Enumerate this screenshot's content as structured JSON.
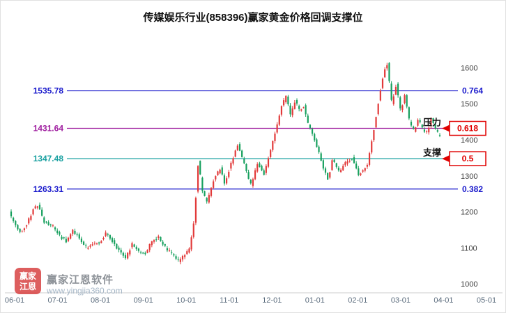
{
  "title": "传媒娱乐行业(858396)赢家黄金价格回调支撑位",
  "chart_data": {
    "type": "candlestick",
    "x_labels": [
      "06-01",
      "07-01",
      "08-01",
      "09-01",
      "10-01",
      "11-01",
      "12-01",
      "01-01",
      "02-01",
      "03-01",
      "04-01",
      "05-01"
    ],
    "y_ticks": [
      1600,
      1500,
      1400,
      1300,
      1200,
      1100,
      1000
    ],
    "y_range": [
      985,
      1670
    ],
    "candle_count": 196,
    "anchors": [
      [
        0,
        1200
      ],
      [
        2,
        1172
      ],
      [
        5,
        1142
      ],
      [
        8,
        1168
      ],
      [
        11,
        1208
      ],
      [
        13,
        1218
      ],
      [
        16,
        1172
      ],
      [
        20,
        1158
      ],
      [
        23,
        1132
      ],
      [
        26,
        1118
      ],
      [
        29,
        1148
      ],
      [
        32,
        1128
      ],
      [
        35,
        1100
      ],
      [
        38,
        1112
      ],
      [
        41,
        1115
      ],
      [
        44,
        1140
      ],
      [
        47,
        1118
      ],
      [
        50,
        1092
      ],
      [
        53,
        1072
      ],
      [
        56,
        1112
      ],
      [
        59,
        1088
      ],
      [
        62,
        1085
      ],
      [
        65,
        1120
      ],
      [
        68,
        1130
      ],
      [
        71,
        1100
      ],
      [
        74,
        1082
      ],
      [
        77,
        1062
      ],
      [
        80,
        1082
      ],
      [
        82,
        1095
      ],
      [
        84,
        1170
      ],
      [
        86,
        1340
      ],
      [
        88,
        1255
      ],
      [
        90,
        1225
      ],
      [
        93,
        1290
      ],
      [
        96,
        1320
      ],
      [
        98,
        1280
      ],
      [
        102,
        1355
      ],
      [
        104,
        1385
      ],
      [
        107,
        1330
      ],
      [
        110,
        1272
      ],
      [
        113,
        1335
      ],
      [
        116,
        1305
      ],
      [
        119,
        1375
      ],
      [
        122,
        1445
      ],
      [
        124,
        1495
      ],
      [
        126,
        1520
      ],
      [
        128,
        1465
      ],
      [
        130,
        1510
      ],
      [
        132,
        1480
      ],
      [
        134,
        1495
      ],
      [
        136,
        1440
      ],
      [
        138,
        1415
      ],
      [
        140,
        1380
      ],
      [
        143,
        1320
      ],
      [
        145,
        1292
      ],
      [
        147,
        1345
      ],
      [
        150,
        1310
      ],
      [
        153,
        1335
      ],
      [
        156,
        1348
      ],
      [
        159,
        1302
      ],
      [
        161,
        1315
      ],
      [
        163,
        1330
      ],
      [
        165,
        1400
      ],
      [
        167,
        1470
      ],
      [
        169,
        1545
      ],
      [
        171,
        1600
      ],
      [
        172,
        1610
      ],
      [
        174,
        1500
      ],
      [
        176,
        1555
      ],
      [
        178,
        1480
      ],
      [
        180,
        1525
      ],
      [
        182,
        1450
      ],
      [
        184,
        1425
      ],
      [
        186,
        1455
      ],
      [
        188,
        1430
      ],
      [
        190,
        1420
      ],
      [
        192,
        1460
      ],
      [
        194,
        1430
      ],
      [
        195,
        1416
      ]
    ],
    "levels": [
      {
        "price": 1535.78,
        "price_label": "1535.78",
        "ratio": "0.764",
        "color": "#1a1acc",
        "style": "plain"
      },
      {
        "price": 1431.64,
        "price_label": "1431.64",
        "ratio": "0.618",
        "color": "#a020a0",
        "style": "flag",
        "side_label": "压力"
      },
      {
        "price": 1347.48,
        "price_label": "1347.48",
        "ratio": "0.5",
        "color": "#18a0a0",
        "style": "flag",
        "side_label": "支撑"
      },
      {
        "price": 1263.31,
        "price_label": "1263.31",
        "ratio": "0.382",
        "color": "#1a1acc",
        "style": "plain"
      }
    ],
    "colors": {
      "up": "#e23a3a",
      "down": "#17a05e",
      "flag": "#e00000",
      "y_axis_text": "#3c3c3c",
      "x_axis_text": "#5a6b7c",
      "axis_line": "#cccccc"
    },
    "legend_position": "none",
    "grid": false
  },
  "watermark": {
    "logo_line1": "赢家",
    "logo_line2": "江恩",
    "brand": "赢家江恩软件",
    "url": "www.yingjia360.com"
  }
}
